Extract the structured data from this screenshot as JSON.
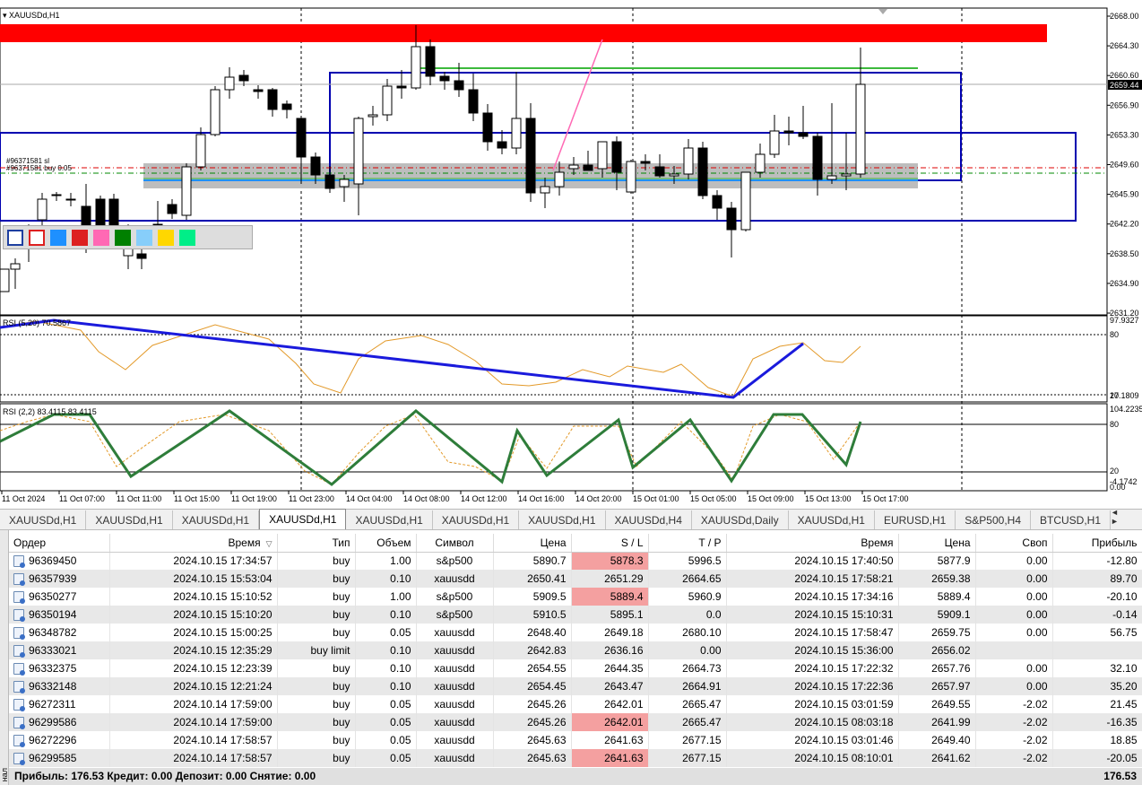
{
  "chart": {
    "symbol": "XAUUSDd,H1",
    "current_price": "2659.44",
    "price_ticks": [
      "2668.00",
      "2664.30",
      "2660.60",
      "2656.90",
      "2653.30",
      "2649.60",
      "2645.90",
      "2642.20",
      "2638.50",
      "2634.90",
      "2631.20"
    ],
    "rsi1": {
      "label": "RSI (5,20) 70.5867",
      "max": "97.9327",
      "min": "17.1809",
      "level_hi": "80",
      "level_lo": "20"
    },
    "rsi2": {
      "label": "RSI (2,2) 83.4115 83.4115",
      "max": "104.2235",
      "min": "-4.1742",
      "level_hi": "80",
      "level_lo": "20",
      "zero": "0.00"
    },
    "time_ticks": [
      "11 Oct 2024",
      "11 Oct 07:00",
      "11 Oct 11:00",
      "11 Oct 15:00",
      "11 Oct 19:00",
      "11 Oct 23:00",
      "14 Oct 04:00",
      "14 Oct 08:00",
      "14 Oct 12:00",
      "14 Oct 16:00",
      "14 Oct 20:00",
      "15 Oct 01:00",
      "15 Oct 05:00",
      "15 Oct 09:00",
      "15 Oct 13:00",
      "15 Oct 17:00"
    ],
    "order_labels": [
      "#96371581 sl",
      "#96371581 buy 0.05"
    ],
    "palette_colors": [
      "#1e90ff",
      "#dd2020",
      "#ff69b4",
      "#008000",
      "#87cefa",
      "#ffd700",
      "#00ee88"
    ]
  },
  "tabs": [
    {
      "label": "XAUUSDd,H1",
      "active": false
    },
    {
      "label": "XAUUSDd,H1",
      "active": false
    },
    {
      "label": "XAUUSDd,H1",
      "active": false
    },
    {
      "label": "XAUUSDd,H1",
      "active": true
    },
    {
      "label": "XAUUSDd,H1",
      "active": false
    },
    {
      "label": "XAUUSDd,H1",
      "active": false
    },
    {
      "label": "XAUUSDd,H1",
      "active": false
    },
    {
      "label": "XAUUSDd,H4",
      "active": false
    },
    {
      "label": "XAUUSDd,Daily",
      "active": false
    },
    {
      "label": "XAUUSDd,H1",
      "active": false
    },
    {
      "label": "EURUSD,H1",
      "active": false
    },
    {
      "label": "S&P500,H4",
      "active": false
    },
    {
      "label": "BTCUSD,H1",
      "active": false
    }
  ],
  "tab_arrows": "◄ ►",
  "terminal": {
    "side_label": "нал",
    "columns": [
      "Ордер",
      "Время",
      "Тип",
      "Объем",
      "Символ",
      "Цена",
      "S / L",
      "T / P",
      "Время",
      "Цена",
      "Своп",
      "Прибыль"
    ],
    "sort_indicator": "▽",
    "rows": [
      {
        "order": "96369450",
        "open_time": "2024.10.15 17:34:57",
        "type": "buy",
        "volume": "1.00",
        "symbol": "s&p500",
        "price": "5890.7",
        "sl": "5878.3",
        "tp": "5996.5",
        "close_time": "2024.10.15 17:40:50",
        "close_price": "5877.9",
        "swap": "0.00",
        "profit": "-12.80",
        "sl_alert": true
      },
      {
        "order": "96357939",
        "open_time": "2024.10.15 15:53:04",
        "type": "buy",
        "volume": "0.10",
        "symbol": "xauusdd",
        "price": "2650.41",
        "sl": "2651.29",
        "tp": "2664.65",
        "close_time": "2024.10.15 17:58:21",
        "close_price": "2659.38",
        "swap": "0.00",
        "profit": "89.70",
        "sl_alert": false
      },
      {
        "order": "96350277",
        "open_time": "2024.10.15 15:10:52",
        "type": "buy",
        "volume": "1.00",
        "symbol": "s&p500",
        "price": "5909.5",
        "sl": "5889.4",
        "tp": "5960.9",
        "close_time": "2024.10.15 17:34:16",
        "close_price": "5889.4",
        "swap": "0.00",
        "profit": "-20.10",
        "sl_alert": true
      },
      {
        "order": "96350194",
        "open_time": "2024.10.15 15:10:20",
        "type": "buy",
        "volume": "0.10",
        "symbol": "s&p500",
        "price": "5910.5",
        "sl": "5895.1",
        "tp": "0.0",
        "close_time": "2024.10.15 15:10:31",
        "close_price": "5909.1",
        "swap": "0.00",
        "profit": "-0.14",
        "sl_alert": false
      },
      {
        "order": "96348782",
        "open_time": "2024.10.15 15:00:25",
        "type": "buy",
        "volume": "0.05",
        "symbol": "xauusdd",
        "price": "2648.40",
        "sl": "2649.18",
        "tp": "2680.10",
        "close_time": "2024.10.15 17:58:47",
        "close_price": "2659.75",
        "swap": "0.00",
        "profit": "56.75",
        "sl_alert": false
      },
      {
        "order": "96333021",
        "open_time": "2024.10.15 12:35:29",
        "type": "buy limit",
        "volume": "0.10",
        "symbol": "xauusdd",
        "price": "2642.83",
        "sl": "2636.16",
        "tp": "0.00",
        "close_time": "2024.10.15 15:36:00",
        "close_price": "2656.02",
        "swap": "",
        "profit": "",
        "sl_alert": false
      },
      {
        "order": "96332375",
        "open_time": "2024.10.15 12:23:39",
        "type": "buy",
        "volume": "0.10",
        "symbol": "xauusdd",
        "price": "2654.55",
        "sl": "2644.35",
        "tp": "2664.73",
        "close_time": "2024.10.15 17:22:32",
        "close_price": "2657.76",
        "swap": "0.00",
        "profit": "32.10",
        "sl_alert": false
      },
      {
        "order": "96332148",
        "open_time": "2024.10.15 12:21:24",
        "type": "buy",
        "volume": "0.10",
        "symbol": "xauusdd",
        "price": "2654.45",
        "sl": "2643.47",
        "tp": "2664.91",
        "close_time": "2024.10.15 17:22:36",
        "close_price": "2657.97",
        "swap": "0.00",
        "profit": "35.20",
        "sl_alert": false
      },
      {
        "order": "96272311",
        "open_time": "2024.10.14 17:59:00",
        "type": "buy",
        "volume": "0.05",
        "symbol": "xauusdd",
        "price": "2645.26",
        "sl": "2642.01",
        "tp": "2665.47",
        "close_time": "2024.10.15 03:01:59",
        "close_price": "2649.55",
        "swap": "-2.02",
        "profit": "21.45",
        "sl_alert": false
      },
      {
        "order": "96299586",
        "open_time": "2024.10.14 17:59:00",
        "type": "buy",
        "volume": "0.05",
        "symbol": "xauusdd",
        "price": "2645.26",
        "sl": "2642.01",
        "tp": "2665.47",
        "close_time": "2024.10.15 08:03:18",
        "close_price": "2641.99",
        "swap": "-2.02",
        "profit": "-16.35",
        "sl_alert": true
      },
      {
        "order": "96272296",
        "open_time": "2024.10.14 17:58:57",
        "type": "buy",
        "volume": "0.05",
        "symbol": "xauusdd",
        "price": "2645.63",
        "sl": "2641.63",
        "tp": "2677.15",
        "close_time": "2024.10.15 03:01:46",
        "close_price": "2649.40",
        "swap": "-2.02",
        "profit": "18.85",
        "sl_alert": false
      },
      {
        "order": "96299585",
        "open_time": "2024.10.14 17:58:57",
        "type": "buy",
        "volume": "0.05",
        "symbol": "xauusdd",
        "price": "2645.63",
        "sl": "2641.63",
        "tp": "2677.15",
        "close_time": "2024.10.15 08:10:01",
        "close_price": "2641.62",
        "swap": "-2.02",
        "profit": "-20.05",
        "sl_alert": true
      }
    ],
    "summary": {
      "text": "Прибыль: 176.53  Кредит: 0.00  Депозит: 0.00  Снятие: 0.00",
      "total": "176.53"
    }
  }
}
